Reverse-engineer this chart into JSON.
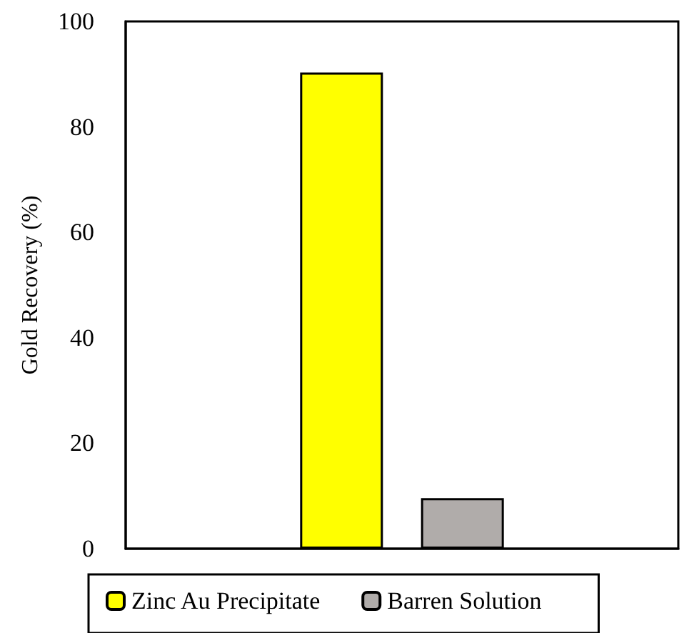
{
  "chart_data": {
    "type": "bar",
    "ylabel": "Gold Recovery (%)",
    "categories": [
      null
    ],
    "series": [
      {
        "name": "Zinc Au Precipitate",
        "color": "#ffff00",
        "values": [
          90.3
        ]
      },
      {
        "name": "Barren Solution",
        "color": "#b0acaa",
        "values": [
          9.6
        ]
      }
    ],
    "ylim": [
      0,
      100
    ],
    "yticks": [
      0,
      20,
      40,
      60,
      80,
      100
    ],
    "grid": false,
    "legend": "bottom"
  }
}
